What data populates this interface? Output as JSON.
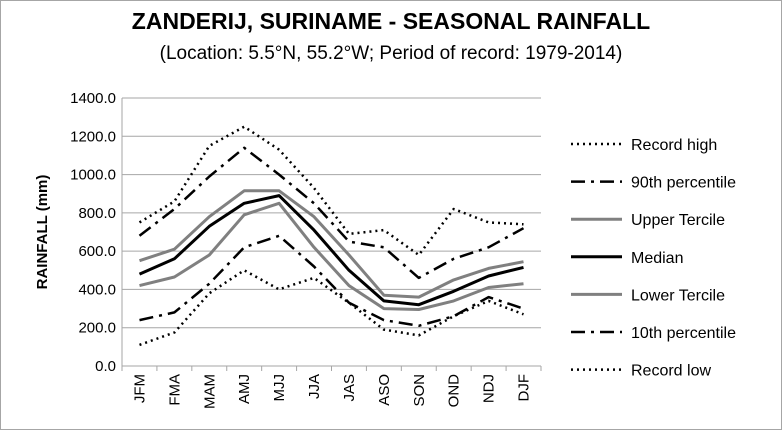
{
  "chart_data": {
    "type": "line",
    "title": "ZANDERIJ, SURINAME - SEASONAL RAINFALL",
    "subtitle": "(Location: 5.5°N, 55.2°W; Period of record: 1979-2014)",
    "xlabel": "",
    "ylabel": "RAINFALL (mm)",
    "ylim": [
      0,
      1400
    ],
    "ytick_labels": [
      "0.0",
      "200.0",
      "400.0",
      "600.0",
      "800.0",
      "1000.0",
      "1200.0",
      "1400.0"
    ],
    "grid": "horizontal",
    "legend_position": "right",
    "categories": [
      "JFM",
      "FMA",
      "MAM",
      "AMJ",
      "MJJ",
      "JJA",
      "JAS",
      "ASO",
      "SON",
      "OND",
      "NDJ",
      "DJF"
    ],
    "series": [
      {
        "name": "Record high",
        "color": "#000000",
        "style": "dotted",
        "values": [
          750,
          860,
          1150,
          1250,
          1130,
          930,
          690,
          710,
          580,
          820,
          750,
          740
        ]
      },
      {
        "name": "90th percentile",
        "color": "#000000",
        "style": "dashdot",
        "values": [
          680,
          820,
          990,
          1140,
          1000,
          850,
          650,
          620,
          460,
          560,
          620,
          720
        ]
      },
      {
        "name": "Upper Tercile",
        "color": "#808080",
        "style": "solid",
        "values": [
          550,
          610,
          780,
          915,
          915,
          780,
          580,
          370,
          360,
          450,
          510,
          545
        ]
      },
      {
        "name": "Median",
        "color": "#000000",
        "style": "solid",
        "values": [
          480,
          560,
          730,
          850,
          890,
          710,
          500,
          340,
          320,
          390,
          470,
          515
        ]
      },
      {
        "name": "Lower Tercile",
        "color": "#808080",
        "style": "solid",
        "values": [
          420,
          465,
          580,
          790,
          850,
          620,
          420,
          300,
          295,
          340,
          410,
          430
        ]
      },
      {
        "name": "10th percentile",
        "color": "#000000",
        "style": "dashdot",
        "values": [
          240,
          280,
          430,
          620,
          680,
          520,
          330,
          240,
          210,
          260,
          360,
          300
        ]
      },
      {
        "name": "Record low",
        "color": "#000000",
        "style": "dotted",
        "values": [
          110,
          175,
          380,
          500,
          400,
          460,
          330,
          190,
          160,
          260,
          340,
          270
        ]
      }
    ]
  }
}
